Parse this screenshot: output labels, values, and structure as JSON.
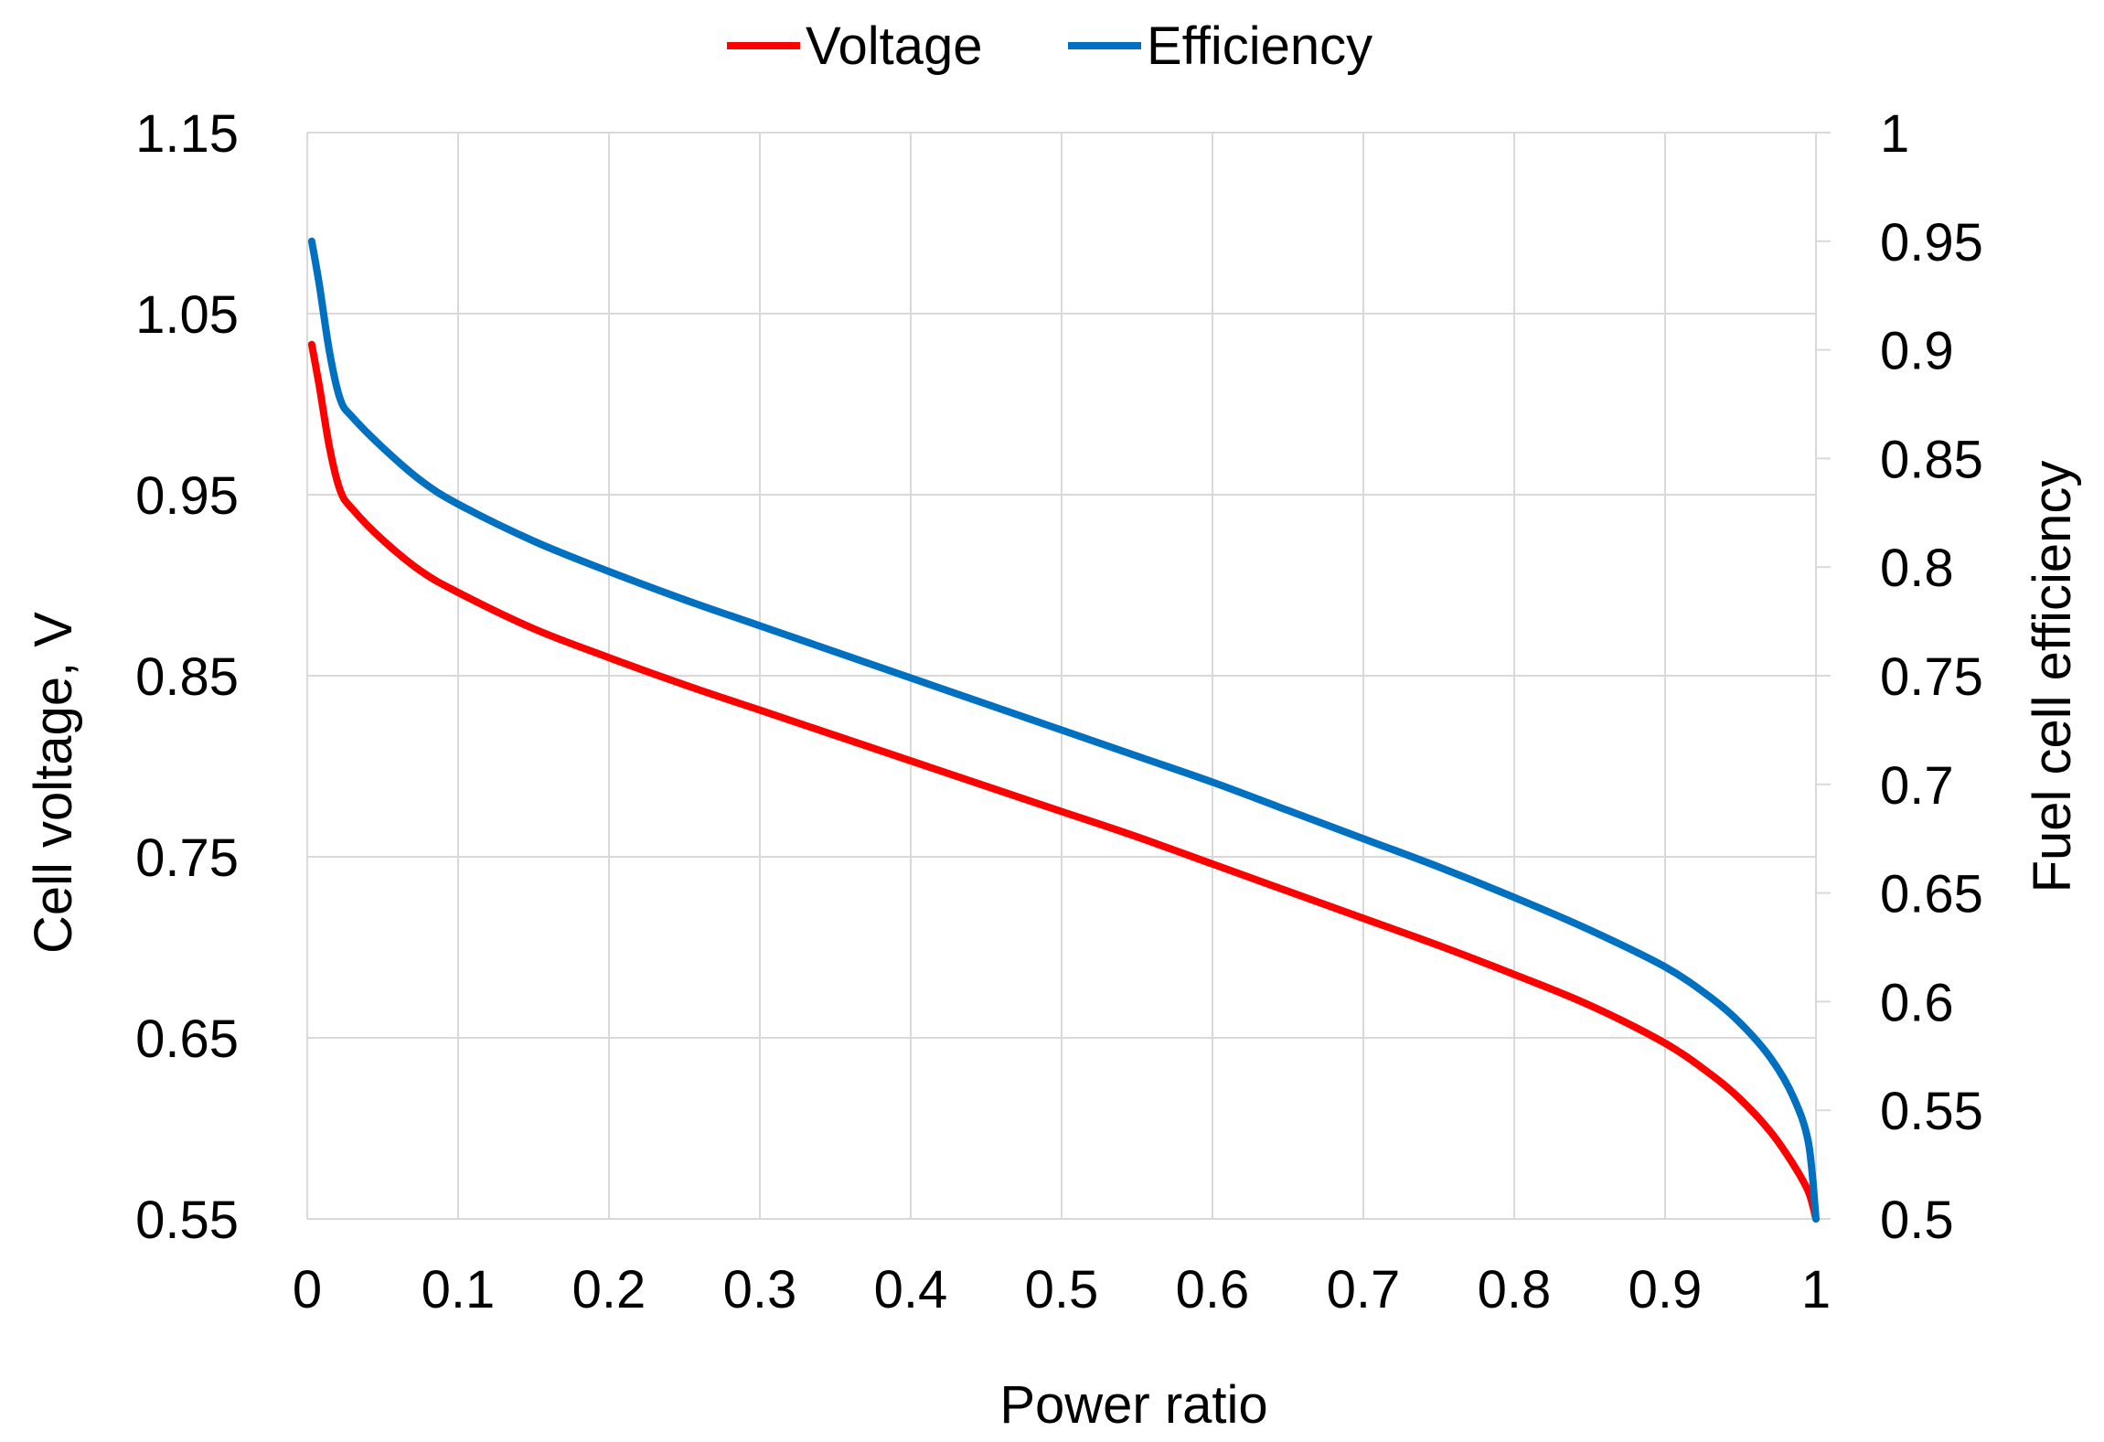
{
  "chart_data": {
    "type": "line",
    "title": "",
    "xlabel": "Power ratio",
    "ylabel": "Cell voltage, V",
    "y2label": "Fuel cell efficiency",
    "xlim": [
      0,
      1
    ],
    "ylim": [
      0.55,
      1.15
    ],
    "y2lim": [
      0.5,
      1
    ],
    "grid": true,
    "legend_position": "top-center",
    "x_ticks": [
      "0",
      "0.1",
      "0.2",
      "0.3",
      "0.4",
      "0.5",
      "0.6",
      "0.7",
      "0.8",
      "0.9",
      "1"
    ],
    "y_ticks": [
      "1.15",
      "1.05",
      "0.95",
      "0.85",
      "0.75",
      "0.65",
      "0.55"
    ],
    "y2_ticks": [
      "1",
      "0.95",
      "0.9",
      "0.85",
      "0.8",
      "0.75",
      "0.7",
      "0.65",
      "0.6",
      "0.55",
      "0.5"
    ],
    "series": [
      {
        "name": "Voltage",
        "axis": "left",
        "color": "#ff0000",
        "x": [
          0.003,
          0.008,
          0.015,
          0.022,
          0.03,
          0.05,
          0.075,
          0.1,
          0.15,
          0.2,
          0.25,
          0.3,
          0.35,
          0.4,
          0.45,
          0.5,
          0.55,
          0.6,
          0.65,
          0.7,
          0.75,
          0.8,
          0.85,
          0.9,
          0.93,
          0.95,
          0.97,
          0.985,
          0.995,
          1.0
        ],
        "values": [
          1.033,
          1.01,
          0.975,
          0.952,
          0.942,
          0.925,
          0.908,
          0.896,
          0.876,
          0.86,
          0.845,
          0.831,
          0.817,
          0.803,
          0.789,
          0.775,
          0.761,
          0.746,
          0.731,
          0.716,
          0.701,
          0.685,
          0.668,
          0.647,
          0.63,
          0.616,
          0.598,
          0.58,
          0.565,
          0.55
        ]
      },
      {
        "name": "Efficiency",
        "axis": "right",
        "color": "#0070c0",
        "x": [
          0.003,
          0.008,
          0.015,
          0.022,
          0.03,
          0.05,
          0.075,
          0.1,
          0.15,
          0.2,
          0.25,
          0.3,
          0.35,
          0.4,
          0.45,
          0.5,
          0.55,
          0.6,
          0.65,
          0.7,
          0.75,
          0.8,
          0.85,
          0.9,
          0.93,
          0.95,
          0.97,
          0.985,
          0.995,
          1.0
        ],
        "values": [
          0.95,
          0.93,
          0.898,
          0.877,
          0.869,
          0.855,
          0.84,
          0.829,
          0.812,
          0.798,
          0.785,
          0.773,
          0.761,
          0.749,
          0.737,
          0.725,
          0.713,
          0.701,
          0.688,
          0.675,
          0.662,
          0.648,
          0.633,
          0.616,
          0.602,
          0.59,
          0.574,
          0.556,
          0.535,
          0.5
        ]
      }
    ]
  }
}
